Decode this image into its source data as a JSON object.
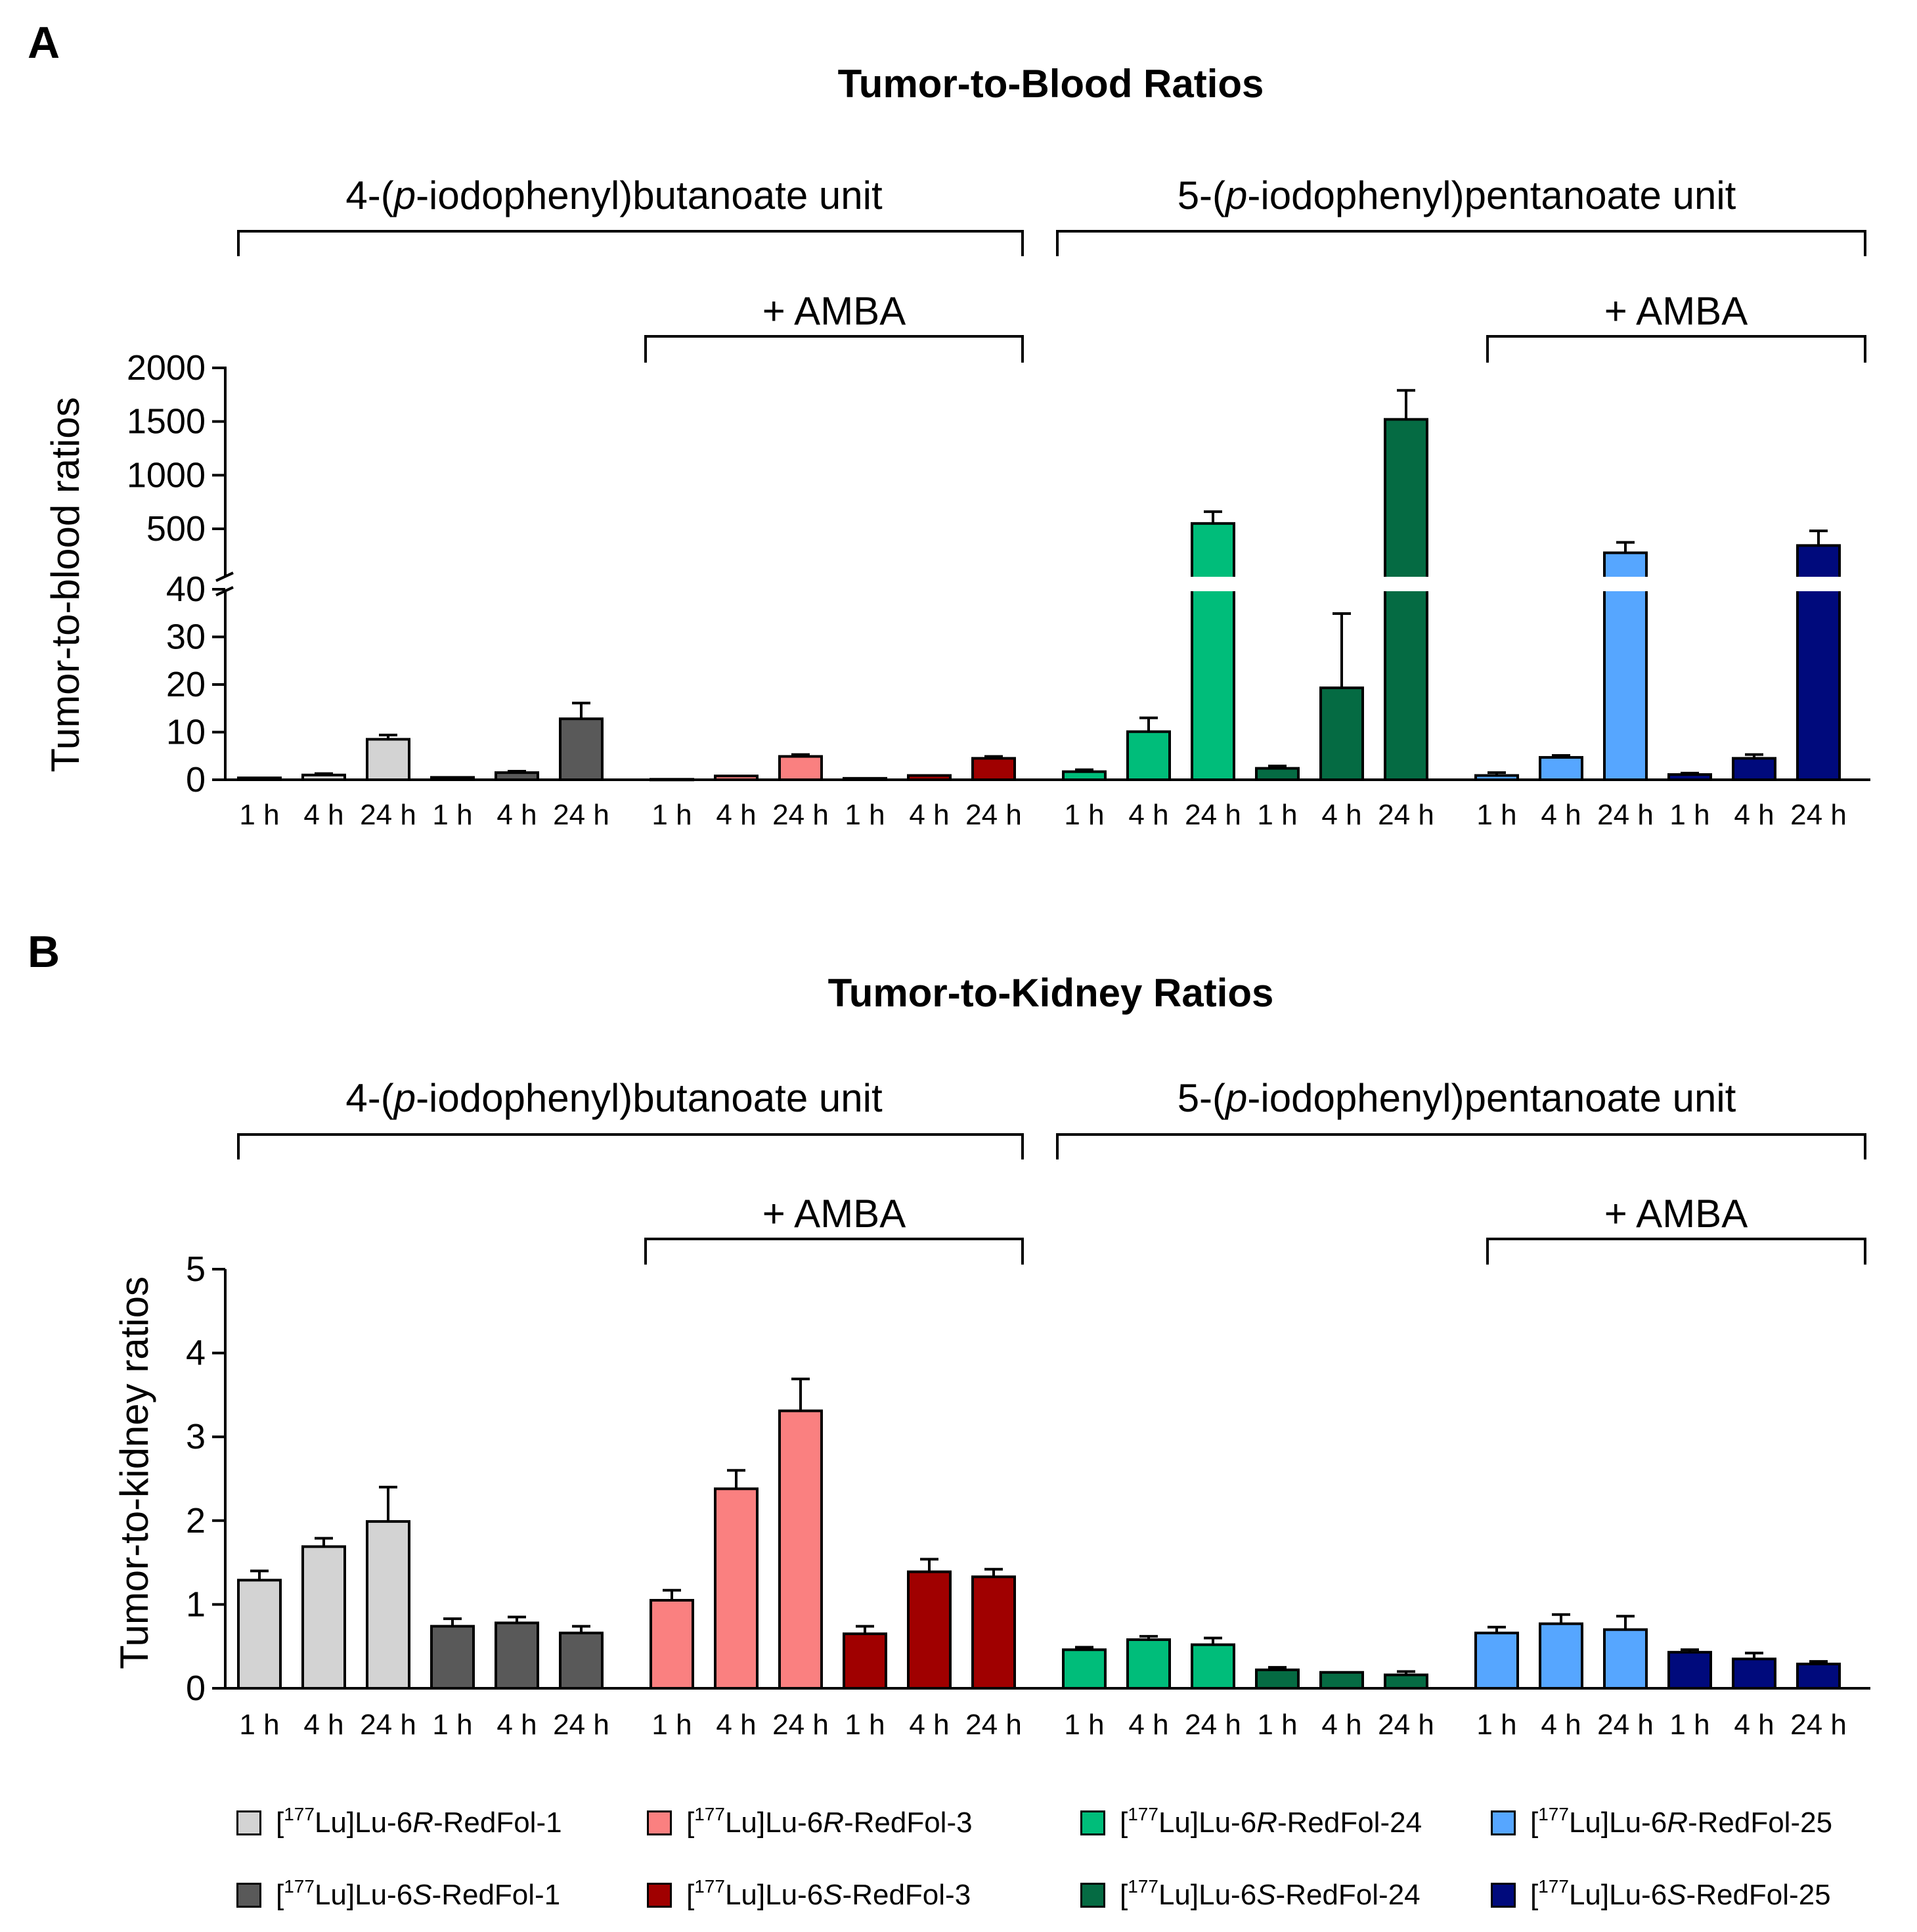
{
  "colors": {
    "R1": "#d3d3d3",
    "S1": "#595959",
    "R3": "#fa8080",
    "S3": "#a00000",
    "R24": "#00bd7a",
    "S24": "#056b43",
    "R25": "#56a6ff",
    "S25": "#000a7c",
    "axis": "#000000"
  },
  "panels": {
    "A": {
      "letter": "A",
      "title": "Tumor-to-Blood Ratios",
      "ylabel": "Tumor-to-blood ratios",
      "bracket_left": "4-(p-iodophenyl)butanoate unit",
      "bracket_right": "5-(p-iodophenyl)pentanoate unit",
      "amba_left": "+ AMBA",
      "amba_right": "+ AMBA"
    },
    "B": {
      "letter": "B",
      "title": "Tumor-to-Kidney Ratios",
      "ylabel": "Tumor-to-kidney ratios",
      "bracket_left": "4-(p-iodophenyl)butanoate unit",
      "bracket_right": "5-(p-iodophenyl)pentanoate unit",
      "amba_left": "+ AMBA",
      "amba_right": "+ AMBA"
    }
  },
  "legend": [
    {
      "sup": "177",
      "pre": "Lu]Lu-6",
      "italic": "R",
      "post": "-RedFol-1",
      "color_key": "R1"
    },
    {
      "sup": "177",
      "pre": "Lu]Lu-6",
      "italic": "R",
      "post": "-RedFol-3",
      "color_key": "R3"
    },
    {
      "sup": "177",
      "pre": "Lu]Lu-6",
      "italic": "R",
      "post": "-RedFol-24",
      "color_key": "R24"
    },
    {
      "sup": "177",
      "pre": "Lu]Lu-6",
      "italic": "R",
      "post": "-RedFol-25",
      "color_key": "R25"
    },
    {
      "sup": "177",
      "pre": "Lu]Lu-6",
      "italic": "S",
      "post": "-RedFol-1",
      "color_key": "S1"
    },
    {
      "sup": "177",
      "pre": "Lu]Lu-6",
      "italic": "S",
      "post": "-RedFol-3",
      "color_key": "S3"
    },
    {
      "sup": "177",
      "pre": "Lu]Lu-6",
      "italic": "S",
      "post": "-RedFol-24",
      "color_key": "S24"
    },
    {
      "sup": "177",
      "pre": "Lu]Lu-6",
      "italic": "S",
      "post": "-RedFol-25",
      "color_key": "S25"
    }
  ],
  "chart_data": [
    {
      "type": "bar",
      "title": "Tumor-to-Blood Ratios",
      "ylabel": "Tumor-to-blood ratios",
      "xlabel": "",
      "categories": [
        "1 h",
        "4 h",
        "24 h"
      ],
      "y_axis": "broken",
      "y_lower_range": [
        0,
        40
      ],
      "y_lower_ticks": [
        0,
        10,
        20,
        30,
        40
      ],
      "y_upper_ticks": [
        500,
        1000,
        1500,
        2000
      ],
      "series": [
        {
          "name": "[177Lu]Lu-6R-RedFol-1",
          "color_key": "R1",
          "values": [
            0.4,
            1.0,
            8.5
          ],
          "errors": [
            0.1,
            0.3,
            0.9
          ]
        },
        {
          "name": "[177Lu]Lu-6S-RedFol-1",
          "color_key": "S1",
          "values": [
            0.5,
            1.5,
            12.8
          ],
          "errors": [
            0.2,
            0.3,
            3.3
          ]
        },
        {
          "name": "[177Lu]Lu-6R-RedFol-3",
          "color_key": "R3",
          "values": [
            0.1,
            0.8,
            4.9
          ],
          "errors": [
            0.05,
            0.2,
            0.4
          ]
        },
        {
          "name": "[177Lu]Lu-6S-RedFol-3",
          "color_key": "S3",
          "values": [
            0.3,
            0.9,
            4.5
          ],
          "errors": [
            0.05,
            0.2,
            0.4
          ]
        },
        {
          "name": "[177Lu]Lu-6R-RedFol-24",
          "color_key": "R24",
          "values": [
            1.7,
            10.1,
            550
          ],
          "errors": [
            0.4,
            2.9,
            110
          ]
        },
        {
          "name": "[177Lu]Lu-6S-RedFol-24",
          "color_key": "S24",
          "values": [
            2.4,
            19.3,
            1520
          ],
          "errors": [
            0.5,
            15.6,
            270
          ]
        },
        {
          "name": "[177Lu]Lu-6R-RedFol-25",
          "color_key": "R25",
          "values": [
            0.9,
            4.7,
            270
          ],
          "errors": [
            0.6,
            0.4,
            100
          ]
        },
        {
          "name": "[177Lu]Lu-6S-RedFol-25",
          "color_key": "S25",
          "values": [
            1.1,
            4.5,
            340
          ],
          "errors": [
            0.3,
            0.8,
            140
          ]
        }
      ],
      "groups": {
        "4-(p-iodophenyl)butanoate unit": [
          "[177Lu]Lu-6R-RedFol-1",
          "[177Lu]Lu-6S-RedFol-1",
          "[177Lu]Lu-6R-RedFol-3",
          "[177Lu]Lu-6S-RedFol-3"
        ],
        "5-(p-iodophenyl)pentanoate unit": [
          "[177Lu]Lu-6R-RedFol-24",
          "[177Lu]Lu-6S-RedFol-24",
          "[177Lu]Lu-6R-RedFol-25",
          "[177Lu]Lu-6S-RedFol-25"
        ]
      }
    },
    {
      "type": "bar",
      "title": "Tumor-to-Kidney Ratios",
      "ylabel": "Tumor-to-kidney ratios",
      "xlabel": "",
      "categories": [
        "1 h",
        "4 h",
        "24 h"
      ],
      "ylim": [
        0,
        5
      ],
      "y_ticks": [
        0,
        1,
        2,
        3,
        4,
        5
      ],
      "series": [
        {
          "name": "[177Lu]Lu-6R-RedFol-1",
          "color_key": "R1",
          "values": [
            1.29,
            1.69,
            1.99
          ],
          "errors": [
            0.11,
            0.1,
            0.41
          ]
        },
        {
          "name": "[177Lu]Lu-6S-RedFol-1",
          "color_key": "S1",
          "values": [
            0.74,
            0.78,
            0.66
          ],
          "errors": [
            0.09,
            0.07,
            0.08
          ]
        },
        {
          "name": "[177Lu]Lu-6R-RedFol-3",
          "color_key": "R3",
          "values": [
            1.05,
            2.38,
            3.31
          ],
          "errors": [
            0.12,
            0.22,
            0.38
          ]
        },
        {
          "name": "[177Lu]Lu-6S-RedFol-3",
          "color_key": "S3",
          "values": [
            0.65,
            1.39,
            1.33
          ],
          "errors": [
            0.09,
            0.15,
            0.09
          ]
        },
        {
          "name": "[177Lu]Lu-6R-RedFol-24",
          "color_key": "R24",
          "values": [
            0.46,
            0.58,
            0.52
          ],
          "errors": [
            0.03,
            0.04,
            0.08
          ]
        },
        {
          "name": "[177Lu]Lu-6S-RedFol-24",
          "color_key": "S24",
          "values": [
            0.22,
            0.19,
            0.16
          ],
          "errors": [
            0.03,
            0.01,
            0.04
          ]
        },
        {
          "name": "[177Lu]Lu-6R-RedFol-25",
          "color_key": "R25",
          "values": [
            0.66,
            0.77,
            0.7
          ],
          "errors": [
            0.07,
            0.11,
            0.16
          ]
        },
        {
          "name": "[177Lu]Lu-6S-RedFol-25",
          "color_key": "S25",
          "values": [
            0.43,
            0.35,
            0.29
          ],
          "errors": [
            0.03,
            0.07,
            0.03
          ]
        }
      ],
      "groups": {
        "4-(p-iodophenyl)butanoate unit": [
          "[177Lu]Lu-6R-RedFol-1",
          "[177Lu]Lu-6S-RedFol-1",
          "[177Lu]Lu-6R-RedFol-3",
          "[177Lu]Lu-6S-RedFol-3"
        ],
        "5-(p-iodophenyl)pentanoate unit": [
          "[177Lu]Lu-6R-RedFol-24",
          "[177Lu]Lu-6S-RedFol-24",
          "[177Lu]Lu-6R-RedFol-25",
          "[177Lu]Lu-6S-RedFol-25"
        ]
      }
    }
  ]
}
